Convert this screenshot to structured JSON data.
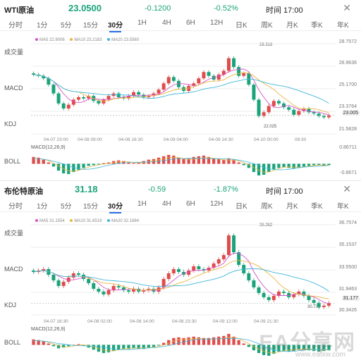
{
  "colors": {
    "up": "#e04b4b",
    "down": "#1aa37a",
    "ma5": "#d455c8",
    "ma10": "#e8b640",
    "ma20": "#3fb6d9",
    "accent": "#2a6ee8"
  },
  "panels": [
    {
      "name": "WTI原油",
      "price": "23.0500",
      "change": "-0.1200",
      "percent": "-0.52%",
      "time": "时间 17:00",
      "tabs": [
        "分时",
        "1分",
        "5分",
        "15分",
        "30分",
        "1H",
        "4H",
        "6H",
        "12H",
        "日K",
        "周K",
        "月K",
        "季K",
        "年K"
      ],
      "active_tab": "30分",
      "side_labels": [
        "成交量",
        "MACD",
        "KDJ",
        "BOLL"
      ],
      "legend": {
        "ma5": "MA5 22.9006",
        "ma10": "MA10 23.2183",
        "ma20": "MA20 23.5560"
      },
      "axis": [
        "28.7572",
        "26.9636",
        "25.1700",
        "23.3764",
        "21.5828"
      ],
      "current_tag": "23.005",
      "x_labels": [
        "04-07 23:00",
        "04-08 09:00",
        "04-08 16:30",
        "04-09 04:00",
        "04-09 14:30",
        "04-10 00:00",
        "09:30"
      ],
      "hi_label": "28.316",
      "lo_label": "22.025",
      "macd_label": "MACD(12,26,9)",
      "macd_axis": [
        "0.86711",
        "-0.8671"
      ],
      "candles": [
        26.3,
        26.2,
        26.0,
        25.5,
        24.8,
        24.0,
        23.6,
        23.9,
        24.3,
        24.5,
        24.4,
        24.6,
        24.2,
        24.0,
        24.3,
        24.6,
        24.8,
        24.5,
        24.4,
        24.6,
        24.9,
        24.7,
        24.5,
        24.6,
        24.8,
        25.1,
        25.6,
        26.1,
        25.8,
        25.3,
        25.0,
        25.4,
        25.6,
        26.0,
        26.5,
        26.2,
        25.9,
        26.3,
        26.6,
        27.6,
        26.9,
        26.2,
        26.4,
        25.5,
        24.3,
        23.0,
        23.3,
        23.8,
        24.2,
        24.0,
        23.7,
        23.5,
        23.1,
        23.4,
        23.6,
        23.3,
        23.2,
        23.0,
        22.9,
        23.05
      ],
      "macd": [
        0.5,
        0.45,
        0.3,
        0.1,
        -0.2,
        -0.5,
        -0.7,
        -0.75,
        -0.6,
        -0.45,
        -0.3,
        -0.15,
        -0.1,
        -0.05,
        0.05,
        0.1,
        0.2,
        0.25,
        0.2,
        0.1,
        0.05,
        0.1,
        0.2,
        0.3,
        0.35,
        0.45,
        0.55,
        0.65,
        0.6,
        0.45,
        0.35,
        0.4,
        0.5,
        0.55,
        0.6,
        0.5,
        0.4,
        0.35,
        0.3,
        0.4,
        0.3,
        0.1,
        -0.1,
        -0.3,
        -0.6,
        -0.85,
        -0.8,
        -0.6,
        -0.4,
        -0.3,
        -0.25,
        -0.3,
        -0.35,
        -0.3,
        -0.2,
        -0.15,
        -0.1,
        -0.1,
        -0.15,
        -0.1
      ],
      "ymin": 21.58,
      "ymax": 28.76
    },
    {
      "name": "布伦特原油",
      "price": "31.18",
      "change": "-0.59",
      "percent": "-1.87%",
      "time": "时间 17:00",
      "tabs": [
        "分时",
        "1分",
        "5分",
        "15分",
        "30分",
        "1H",
        "4H",
        "6H",
        "12H",
        "日K",
        "周K",
        "月K",
        "季K",
        "年K"
      ],
      "active_tab": "30分",
      "side_labels": [
        "成交量",
        "MACD",
        "KDJ",
        "BOLL"
      ],
      "legend": {
        "ma5": "MA5 31.1554",
        "ma10": "MA10 31.6519",
        "ma20": "MA20 32.1684"
      },
      "axis": [
        "36.7574",
        "35.1537",
        "33.5500",
        "31.9463",
        "30.3426"
      ],
      "current_tag": "31.177",
      "x_labels": [
        "04-07 16:30",
        "04-08 02:00",
        "04-08 14:00",
        "04-08 23:30",
        "04-09 12:00",
        "04-09 21:30"
      ],
      "hi_label": "36.362",
      "lo_label": "30.738",
      "macd_label": "MACD(12,26,9)",
      "macd_axis": [],
      "candles": [
        33.4,
        33.5,
        33.6,
        33.2,
        32.8,
        32.4,
        32.7,
        33.0,
        33.3,
        33.2,
        32.9,
        32.6,
        32.2,
        32.0,
        31.8,
        32.1,
        32.4,
        32.3,
        32.1,
        32.0,
        32.2,
        32.0,
        32.1,
        32.2,
        32.0,
        32.3,
        32.9,
        33.3,
        33.6,
        33.4,
        33.2,
        33.5,
        33.8,
        33.6,
        33.5,
        33.7,
        34.0,
        34.3,
        34.6,
        36.0,
        34.8,
        33.9,
        33.3,
        32.8,
        32.3,
        31.9,
        31.6,
        31.4,
        31.7,
        32.0,
        31.9,
        31.6,
        31.8,
        32.0,
        31.7,
        31.4,
        31.2,
        30.9,
        31.0,
        31.18
      ],
      "macd": [
        0.4,
        0.35,
        0.25,
        0.1,
        -0.1,
        -0.25,
        -0.2,
        -0.1,
        0.0,
        0.05,
        -0.05,
        -0.2,
        -0.35,
        -0.5,
        -0.6,
        -0.55,
        -0.45,
        -0.35,
        -0.3,
        -0.3,
        -0.25,
        -0.3,
        -0.3,
        -0.2,
        -0.15,
        -0.05,
        0.15,
        0.35,
        0.5,
        0.55,
        0.5,
        0.55,
        0.6,
        0.55,
        0.5,
        0.5,
        0.55,
        0.6,
        0.65,
        0.8,
        0.6,
        0.35,
        0.1,
        -0.15,
        -0.4,
        -0.6,
        -0.75,
        -0.8,
        -0.65,
        -0.5,
        -0.45,
        -0.5,
        -0.45,
        -0.35,
        -0.35,
        -0.4,
        -0.45,
        -0.5,
        -0.45,
        -0.4
      ],
      "ymin": 30.34,
      "ymax": 36.76
    }
  ],
  "watermark": {
    "text": "EA分享网",
    "url": "www.eafxw.com"
  }
}
